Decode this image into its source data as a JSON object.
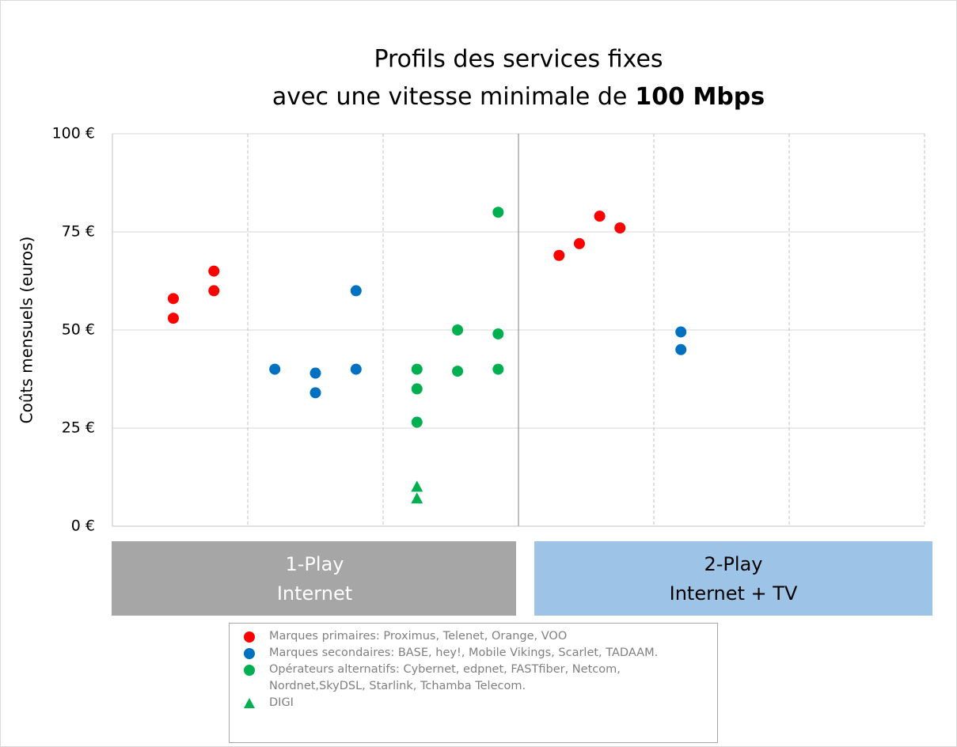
{
  "chart_data": {
    "type": "scatter",
    "title": [
      "Profils des services fixes",
      "avec une vitesse minimale de",
      "100 Mbps"
    ],
    "ylabel": "Coûts mensuels (euros)",
    "xlim": [
      0,
      6
    ],
    "xticks": [
      0,
      1,
      2,
      3,
      4,
      5,
      6
    ],
    "ylim": [
      0,
      100
    ],
    "yticks": [
      {
        "value": 0,
        "label": "0 €"
      },
      {
        "value": 25,
        "label": "25 €"
      },
      {
        "value": 50,
        "label": "50 €"
      },
      {
        "value": 75,
        "label": "75 €"
      },
      {
        "value": 100,
        "label": "100 €"
      }
    ],
    "grid": true,
    "groups": [
      {
        "label": [
          "1-Play",
          "Internet"
        ],
        "range": [
          0,
          3
        ],
        "color": "#a6a6a6",
        "text_color": "#ffffff"
      },
      {
        "label": [
          "2-Play",
          "Internet + TV"
        ],
        "range": [
          3,
          6
        ],
        "color": "#9dc3e6",
        "text_color": "#000000"
      }
    ],
    "legend": "bottom",
    "series": [
      {
        "name": "Marques primaires:  Proximus, Telenet, Orange, VOO",
        "color": "#ff0000",
        "marker": "circle",
        "x": [
          0.45,
          0.45,
          0.75,
          0.75,
          3.3,
          3.45,
          3.6,
          3.75
        ],
        "values": [
          58,
          53,
          65,
          60,
          69,
          72,
          79,
          76
        ]
      },
      {
        "name": "Marques secondaires: BASE, hey!, Mobile Vikings, Scarlet, TADAAM.",
        "color": "#0070c0",
        "marker": "circle",
        "x": [
          1.2,
          1.5,
          1.5,
          1.8,
          1.8,
          4.2,
          4.2
        ],
        "values": [
          40,
          39,
          34,
          60,
          40,
          49.5,
          45
        ]
      },
      {
        "name": "Opérateurs alternatifs: Cybernet, edpnet, FASTfiber, Netcom, Nordnet,SkyDSL, Starlink, Tchamba Telecom.",
        "color": "#00b050",
        "marker": "circle",
        "x": [
          2.25,
          2.25,
          2.25,
          2.55,
          2.55,
          2.85,
          2.85,
          2.85
        ],
        "values": [
          40,
          35,
          26.5,
          50,
          39.5,
          80,
          49,
          40
        ]
      },
      {
        "name": "DIGI",
        "color": "#00b050",
        "marker": "triangle",
        "x": [
          2.25,
          2.25
        ],
        "values": [
          10,
          7
        ]
      }
    ]
  }
}
